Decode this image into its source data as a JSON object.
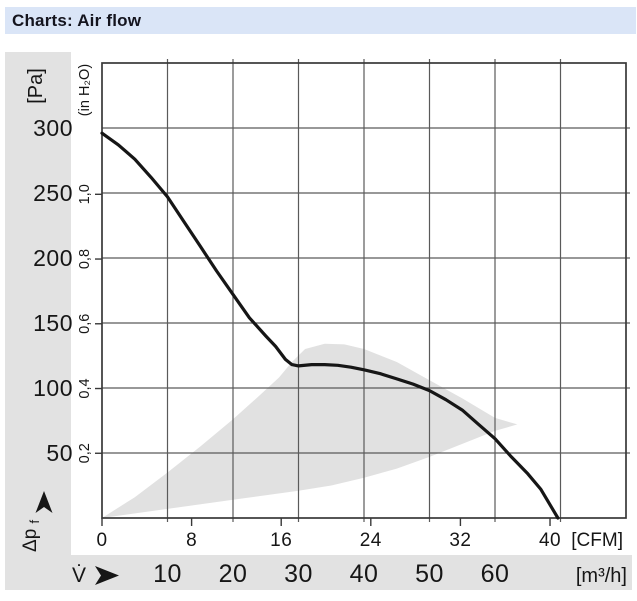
{
  "header": {
    "title": "Charts: Air flow"
  },
  "labels": {
    "pa_unit": "[Pa]",
    "inh2o_unit": "(in H₂O)",
    "cfm_unit": "[CFM]",
    "m3h_unit": "[m³/h]",
    "pressure_symbol": "Δp",
    "pressure_symbol_sub": "f",
    "flow_symbol": "V̇"
  },
  "chart_data": {
    "type": "line",
    "title": "Charts: Air flow",
    "x_axis": {
      "primary_unit": "[CFM]",
      "secondary_unit": "[m³/h]",
      "cfm_ticks": [
        0,
        8,
        16,
        24,
        32,
        40
      ],
      "m3h_ticks": [
        10,
        20,
        30,
        40,
        50,
        60
      ],
      "m3h_range": [
        0,
        80
      ],
      "grid_step_m3h": 10
    },
    "y_axis": {
      "primary_unit": "[Pa]",
      "secondary_unit": "(in H₂O)",
      "pa_ticks": [
        300,
        250,
        200,
        150,
        100,
        50
      ],
      "inh2o_ticks": [
        {
          "label": "1,0",
          "value": 1.0
        },
        {
          "label": "0,8",
          "value": 0.8
        },
        {
          "label": "0,6",
          "value": 0.6
        },
        {
          "label": "0,4",
          "value": 0.4
        },
        {
          "label": "0,2",
          "value": 0.2
        }
      ],
      "pa_range": [
        0,
        350
      ],
      "grid_step_pa": 50
    },
    "conversions": {
      "pa_per_inh2o": 249,
      "m3h_per_cfm": 1.71
    },
    "series": [
      {
        "name": "air flow pressure curve",
        "color": "#161616",
        "points_m3h_pa": [
          [
            0,
            296
          ],
          [
            2.5,
            287
          ],
          [
            5,
            276
          ],
          [
            7.5,
            262
          ],
          [
            10,
            247
          ],
          [
            12.5,
            228
          ],
          [
            15,
            209
          ],
          [
            17.5,
            190
          ],
          [
            20,
            172
          ],
          [
            22.5,
            154
          ],
          [
            25,
            140
          ],
          [
            26.5,
            132
          ],
          [
            28,
            122
          ],
          [
            29,
            118
          ],
          [
            30,
            117
          ],
          [
            32,
            118
          ],
          [
            34,
            118
          ],
          [
            36,
            117.5
          ],
          [
            38,
            116
          ],
          [
            40,
            114
          ],
          [
            42.5,
            111
          ],
          [
            45,
            107
          ],
          [
            47.5,
            103
          ],
          [
            50,
            98
          ],
          [
            52.5,
            91
          ],
          [
            55,
            83
          ],
          [
            57.5,
            72
          ],
          [
            60,
            61
          ],
          [
            62.5,
            47
          ],
          [
            65,
            34
          ],
          [
            67,
            22
          ],
          [
            69.6,
            0
          ]
        ]
      }
    ],
    "operating_region": {
      "name": "recommended operating range",
      "color": "#e1e1e1",
      "polygon_m3h_pa": [
        [
          0,
          0
        ],
        [
          10,
          7
        ],
        [
          20,
          14
        ],
        [
          30,
          21
        ],
        [
          35,
          25
        ],
        [
          40,
          31
        ],
        [
          45,
          38
        ],
        [
          50,
          47
        ],
        [
          55,
          57
        ],
        [
          60,
          67
        ],
        [
          63.4,
          72
        ],
        [
          60,
          77
        ],
        [
          55,
          92
        ],
        [
          50,
          106
        ],
        [
          45,
          120
        ],
        [
          40,
          130
        ],
        [
          37,
          133.5
        ],
        [
          34,
          134
        ],
        [
          31,
          130
        ],
        [
          29,
          120
        ],
        [
          27,
          108
        ],
        [
          24,
          94
        ],
        [
          20,
          76
        ],
        [
          15,
          55
        ],
        [
          10,
          35
        ],
        [
          5,
          16
        ]
      ]
    }
  },
  "colors": {
    "title_bg": "#dae5f7",
    "band_gray": "#e2e2e2",
    "grid": "#5a5a5a",
    "border": "#383838",
    "curve": "#161616",
    "region": "#e1e1e1"
  }
}
